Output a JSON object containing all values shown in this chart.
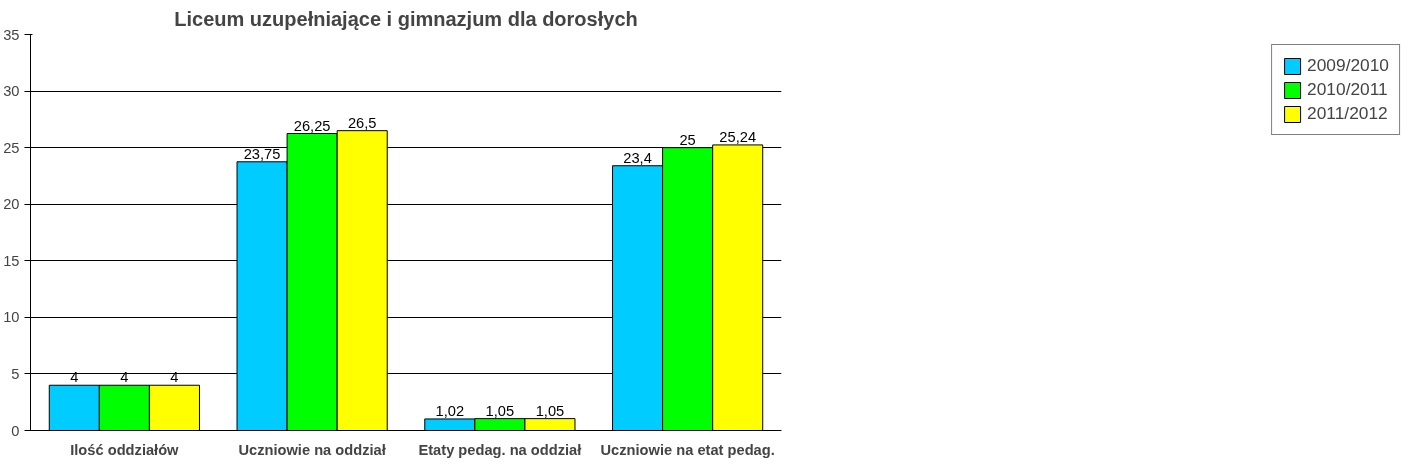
{
  "chart_data": {
    "type": "bar",
    "title": "Liceum uzupełniające i gimnazjum dla dorosłych",
    "categories": [
      "Ilość oddziałów",
      "Uczniowie na oddział",
      "Etaty pedag. na oddział",
      "Uczniowie na etat pedag."
    ],
    "series": [
      {
        "name": "2009/2010",
        "color": "#00ccff",
        "values": [
          4,
          23.75,
          1.02,
          23.4
        ]
      },
      {
        "name": "2010/2011",
        "color": "#00ff00",
        "values": [
          4,
          26.25,
          1.05,
          25
        ]
      },
      {
        "name": "2011/2012",
        "color": "#ffff00",
        "values": [
          4,
          26.5,
          1.05,
          25.24
        ]
      }
    ],
    "ylim": [
      0,
      35
    ],
    "yticks": [
      0,
      5,
      10,
      15,
      20,
      25,
      30,
      35
    ],
    "grid": "y",
    "legend": "right",
    "value_labels": [
      [
        "4",
        "23,75",
        "1,02",
        "23,4"
      ],
      [
        "4",
        "26,25",
        "1,05",
        "25"
      ],
      [
        "4",
        "26,5",
        "1,05",
        "25,24"
      ]
    ]
  }
}
